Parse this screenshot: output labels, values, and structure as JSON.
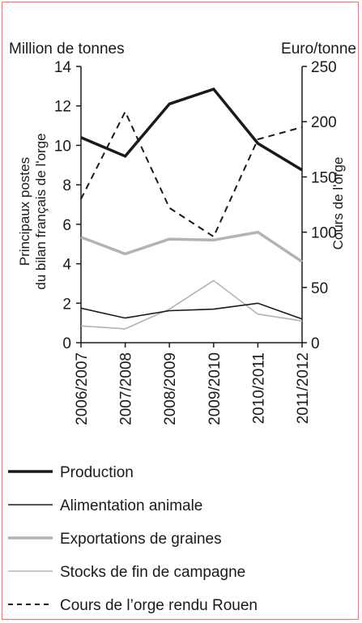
{
  "chart_data": {
    "type": "line",
    "categories": [
      "2006/2007",
      "2007/2008",
      "2008/2009",
      "2009/2010",
      "2010/2011",
      "2011/2012"
    ],
    "left_axis": {
      "unit": "Million de tonnes",
      "label": "Principaux postes du bilan français de l'orge",
      "label_line1": "Principaux postes",
      "label_line2": "du bilan français de l'orge",
      "ylim": [
        0,
        14
      ],
      "ticks": [
        "0",
        "2",
        "4",
        "6",
        "8",
        "10",
        "12",
        "14"
      ]
    },
    "right_axis": {
      "unit": "Euro/tonne",
      "label": "Cours de l'orge",
      "ylim": [
        0,
        250
      ],
      "ticks": [
        "0",
        "50",
        "100",
        "150",
        "200",
        "250"
      ]
    },
    "series": [
      {
        "name": "Production",
        "axis": "left",
        "style": "thick-black",
        "values": [
          10.4,
          9.45,
          12.1,
          12.85,
          10.1,
          8.75
        ]
      },
      {
        "name": "Alimentation animale",
        "axis": "left",
        "style": "thin-black",
        "values": [
          1.75,
          1.25,
          1.62,
          1.7,
          2.0,
          1.2
        ]
      },
      {
        "name": "Exportations de graines",
        "axis": "left",
        "style": "thick-gray",
        "values": [
          5.35,
          4.5,
          5.25,
          5.2,
          5.6,
          4.1
        ]
      },
      {
        "name": "Stocks de fin de campagne",
        "axis": "left",
        "style": "thin-gray",
        "values": [
          0.85,
          0.7,
          1.7,
          3.15,
          1.45,
          1.1
        ]
      },
      {
        "name": "Cours de l’orge rendu Rouen",
        "axis": "right",
        "style": "dashed-black",
        "values": [
          130,
          209,
          122,
          96,
          184,
          195
        ]
      }
    ],
    "grid": false,
    "legend_position": "bottom"
  },
  "colors": {
    "border": "#e07b7b",
    "black": "#1a1a1a",
    "gray": "#b3b3b3"
  }
}
